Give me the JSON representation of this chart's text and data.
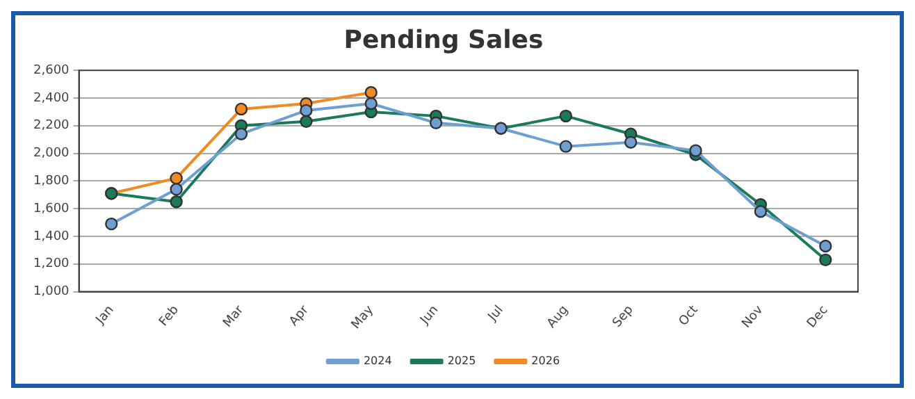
{
  "chart_data": {
    "type": "line",
    "title": "Pending Sales",
    "categories": [
      "Jan",
      "Feb",
      "Mar",
      "Apr",
      "May",
      "Jun",
      "Jul",
      "Aug",
      "Sep",
      "Oct",
      "Nov",
      "Dec"
    ],
    "series": [
      {
        "name": "2024",
        "color": "#6f9fd0",
        "values": [
          1490,
          1740,
          2140,
          2310,
          2360,
          2220,
          2180,
          2050,
          2080,
          2020,
          1580,
          1330
        ]
      },
      {
        "name": "2025",
        "color": "#1a7a5a",
        "values": [
          1710,
          1650,
          2200,
          2230,
          2300,
          2270,
          2180,
          2270,
          2140,
          1990,
          1630,
          1230
        ]
      },
      {
        "name": "2026",
        "color": "#f08a24",
        "values": [
          1710,
          1820,
          2320,
          2360,
          2440,
          null,
          null,
          null,
          null,
          null,
          null,
          null
        ]
      }
    ],
    "ylim": [
      1000,
      2600
    ],
    "yticks": [
      {
        "value": 1000,
        "label": "1,000"
      },
      {
        "value": 1200,
        "label": "1,200"
      },
      {
        "value": 1400,
        "label": "1,400"
      },
      {
        "value": 1600,
        "label": "1,600"
      },
      {
        "value": 1800,
        "label": "1,800"
      },
      {
        "value": 2000,
        "label": "2,000"
      },
      {
        "value": 2200,
        "label": "2,200"
      },
      {
        "value": 2400,
        "label": "2,400"
      },
      {
        "value": 2600,
        "label": "2,600"
      }
    ],
    "grid": "y",
    "legend": "bottom",
    "marker": "circle",
    "line_style": "solid"
  }
}
